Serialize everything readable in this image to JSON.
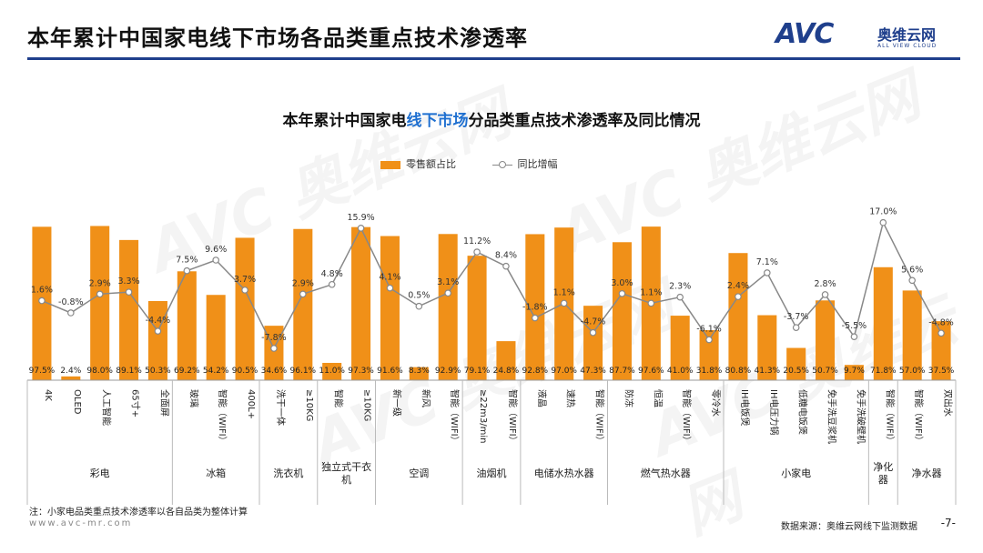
{
  "page": {
    "title": "本年累计中国家电线下市场各品类重点技术渗透率",
    "logo_mark": "AVC",
    "logo_cn": "奥维云网",
    "logo_en": "ALL VIEW CLOUD",
    "watermark": "AVC 奥维云网",
    "note": "注：小家电品类重点技术渗透率以各自品类为整体计算",
    "url": "www.avc-mr.com",
    "source": "数据来源：奥维云网线下监测数据",
    "page_number": "-7-",
    "colors": {
      "bar": "#f09018",
      "line": "#888888",
      "accent": "#1f3f8c",
      "highlight": "#1e6fd0"
    }
  },
  "chart_data": {
    "type": "bar",
    "title_prefix": "本年累计中国家电",
    "title_highlight": "线下市场",
    "title_suffix": "分品类重点技术渗透率及同比情况",
    "legend": {
      "bar": "零售额占比",
      "line": "同比增幅"
    },
    "categories": [
      "4K",
      "OLED",
      "人工智能",
      "65寸+",
      "全面屏",
      "玻璃",
      "智能（WIFI）",
      "400L+",
      "洗干一体",
      "≥10KG",
      "智能",
      "≥10KG",
      "新一级",
      "新风",
      "智能（WIFI）",
      "≥22m3/min",
      "智能（WIFI）",
      "液晶",
      "速热",
      "智能（WIFI）",
      "防冻",
      "恒温",
      "智能（WIFI）",
      "零冷水",
      "IH电饭煲",
      "IH电压力锅",
      "低糖电饭煲",
      "免手洗豆浆机",
      "免手洗破壁机",
      "智能（WIFI）",
      "智能（WIFI）",
      "双出水"
    ],
    "groups": [
      {
        "name": "彩电",
        "count": 5
      },
      {
        "name": "冰箱",
        "count": 3
      },
      {
        "name": "洗衣机",
        "count": 2
      },
      {
        "name": "独立式干衣机",
        "count": 2
      },
      {
        "name": "空调",
        "count": 3
      },
      {
        "name": "油烟机",
        "count": 2
      },
      {
        "name": "电储水热水器",
        "count": 3
      },
      {
        "name": "燃气热水器",
        "count": 4
      },
      {
        "name": "小家电",
        "count": 5
      },
      {
        "name": "净化器",
        "count": 1
      },
      {
        "name": "净水器",
        "count": 2
      }
    ],
    "series": [
      {
        "name": "零售额占比",
        "type": "bar",
        "values": [
          97.5,
          2.4,
          98.0,
          89.1,
          50.3,
          69.2,
          54.2,
          90.5,
          34.6,
          96.1,
          11.0,
          97.3,
          91.6,
          8.3,
          92.9,
          79.1,
          24.8,
          92.8,
          97.0,
          47.3,
          87.7,
          97.6,
          41.0,
          31.8,
          80.8,
          41.3,
          20.5,
          50.7,
          9.7,
          71.8,
          57.0,
          37.5
        ],
        "labels": [
          "97.5%",
          "2.4%",
          "98.0%",
          "89.1%",
          "50.3%",
          "69.2%",
          "54.2%",
          "90.5%",
          "34.6%",
          "96.1%",
          "11.0%",
          "97.3%",
          "91.6%",
          "8.3%",
          "92.9%",
          "79.1%",
          "24.8%",
          "92.8%",
          "97.0%",
          "47.3%",
          "87.7%",
          "97.6%",
          "41.0%",
          "31.8%",
          "80.8%",
          "41.3%",
          "20.5%",
          "50.7%",
          "9.7%",
          "71.8%",
          "57.0%",
          "37.5%"
        ]
      },
      {
        "name": "同比增幅",
        "type": "line",
        "values": [
          1.6,
          -0.8,
          2.9,
          3.3,
          -4.4,
          7.5,
          9.6,
          3.7,
          -7.8,
          2.9,
          4.8,
          15.9,
          4.1,
          0.5,
          3.1,
          11.2,
          8.4,
          -1.8,
          1.1,
          -4.7,
          3.0,
          1.1,
          2.3,
          -6.1,
          2.4,
          7.1,
          -3.7,
          2.8,
          -5.5,
          17.0,
          5.6,
          -4.8
        ],
        "labels": [
          "1.6%",
          "-0.8%",
          "2.9%",
          "3.3%",
          "-4.4%",
          "7.5%",
          "9.6%",
          "3.7%",
          "-7.8%",
          "2.9%",
          "4.8%",
          "15.9%",
          "4.1%",
          "0.5%",
          "3.1%",
          "11.2%",
          "8.4%",
          "-1.8%",
          "1.1%",
          "-4.7%",
          "3.0%",
          "1.1%",
          "2.3%",
          "-6.1%",
          "2.4%",
          "7.1%",
          "-3.7%",
          "2.8%",
          "-5.5%",
          "17.0%",
          "5.6%",
          "-4.8%"
        ]
      }
    ],
    "y_bar_range": [
      0,
      100
    ],
    "y_line_range": [
      -13,
      20
    ]
  }
}
